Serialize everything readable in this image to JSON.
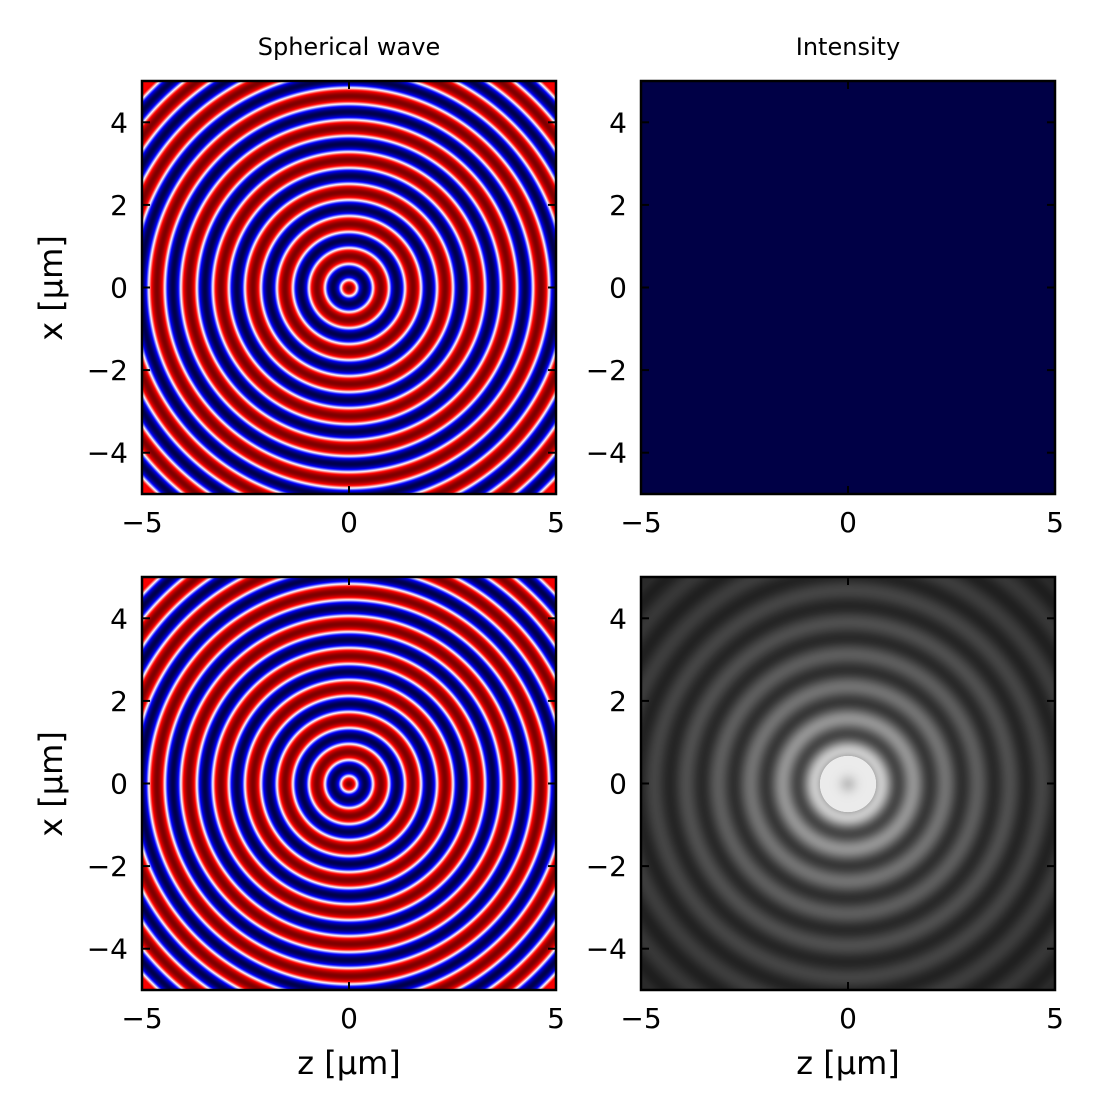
{
  "chart_data": [
    {
      "type": "heatmap",
      "title": "Spherical wave",
      "xlabel": "",
      "ylabel": "x [μm]",
      "xlim": [
        -5,
        5
      ],
      "ylim": [
        -5,
        5
      ],
      "xticks": [
        -5,
        0,
        5
      ],
      "yticks": [
        -4,
        -2,
        0,
        2,
        4
      ],
      "colormap": "seismic",
      "field": "cos(2π r / 0.8 µm), r = sqrt(x²+z²)"
    },
    {
      "type": "heatmap",
      "title": "Intensity",
      "xlabel": "",
      "ylabel": "",
      "xlim": [
        -5,
        5
      ],
      "ylim": [
        -5,
        5
      ],
      "xticks": [
        -5,
        0,
        5
      ],
      "yticks": [
        -4,
        -2,
        0,
        2,
        4
      ],
      "colormap": "seismic",
      "field": "uniform (minimum)",
      "fill_color": "#000046"
    },
    {
      "type": "heatmap",
      "title": "",
      "xlabel": "z [μm]",
      "ylabel": "x [μm]",
      "xlim": [
        -5,
        5
      ],
      "ylim": [
        -5,
        5
      ],
      "xticks": [
        -5,
        0,
        5
      ],
      "yticks": [
        -4,
        -2,
        0,
        2,
        4
      ],
      "colormap": "seismic",
      "field": "cos(2π r / 0.8 µm)"
    },
    {
      "type": "heatmap",
      "title": "",
      "xlabel": "z [μm]",
      "ylabel": "",
      "xlim": [
        -5,
        5
      ],
      "ylim": [
        -5,
        5
      ],
      "xticks": [
        -5,
        0,
        5
      ],
      "yticks": [
        -4,
        -2,
        0,
        2,
        4
      ],
      "colormap": "gray",
      "field": "intensity rings, period 0.8 µm, decaying with r"
    }
  ],
  "tick_labels": {
    "x": [
      "−5",
      "0",
      "5"
    ],
    "y": [
      "−4",
      "−2",
      "0",
      "2",
      "4"
    ]
  },
  "colors": {
    "seismic_low": "#00004c",
    "seismic_mid": "#ffffff",
    "seismic_high": "#7f0000",
    "intensity_fill": "#000046"
  }
}
